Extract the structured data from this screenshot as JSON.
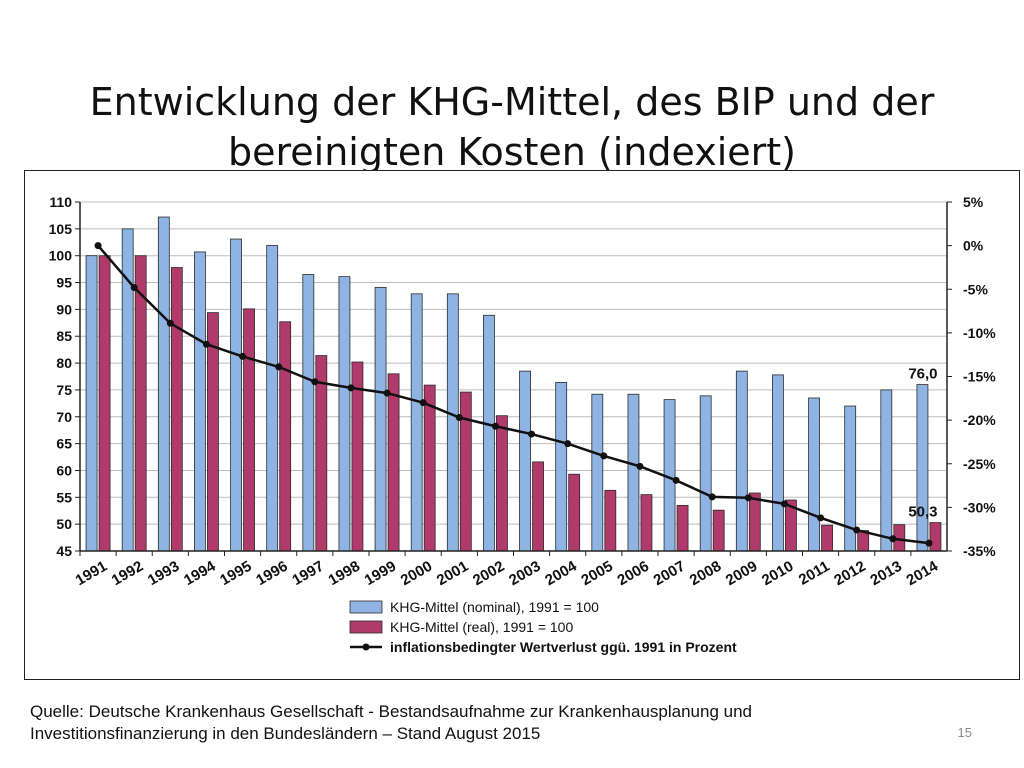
{
  "slide": {
    "title": "Entwicklung der KHG-Mittel, des BIP und der bereinigten Kosten (indexiert)",
    "source": "Quelle: Deutsche Krankenhaus Gesellschaft - Bestandsaufnahme zur  Krankenhausplanung und Investitionsfinanzierung  in den Bundesländern – Stand August 2015",
    "page_number": "15"
  },
  "chart_data": {
    "type": "bar",
    "categories": [
      "1991",
      "1992",
      "1993",
      "1994",
      "1995",
      "1996",
      "1997",
      "1998",
      "1999",
      "2000",
      "2001",
      "2002",
      "2003",
      "2004",
      "2005",
      "2006",
      "2007",
      "2008",
      "2009",
      "2010",
      "2011",
      "2012",
      "2013",
      "2014"
    ],
    "series": [
      {
        "name": "KHG-Mittel (nominal), 1991 = 100",
        "type": "bar",
        "axis": "left",
        "color": "#8fb4e3",
        "values": [
          100,
          105,
          107.2,
          100.7,
          103.1,
          101.9,
          96.5,
          96.1,
          94.1,
          92.9,
          92.9,
          88.9,
          78.5,
          76.4,
          74.2,
          74.2,
          73.2,
          73.9,
          78.5,
          77.8,
          73.5,
          72.0,
          75.0,
          76.0
        ]
      },
      {
        "name": "KHG-Mittel (real), 1991 = 100",
        "type": "bar",
        "axis": "left",
        "color": "#b03a6a",
        "values": [
          100,
          100,
          97.8,
          89.4,
          90.1,
          87.7,
          81.4,
          80.2,
          78.0,
          75.9,
          74.6,
          70.2,
          61.6,
          59.3,
          56.3,
          55.5,
          53.5,
          52.6,
          55.8,
          54.5,
          49.8,
          48.8,
          49.9,
          50.3
        ]
      },
      {
        "name": "inflationsbedingter Wertverlust ggü. 1991 in Prozent",
        "type": "line",
        "axis": "right",
        "color": "#111111",
        "values": [
          0,
          -4.8,
          -8.9,
          -11.3,
          -12.7,
          -13.9,
          -15.6,
          -16.3,
          -16.9,
          -18.0,
          -19.7,
          -20.7,
          -21.6,
          -22.7,
          -24.1,
          -25.3,
          -26.9,
          -28.8,
          -28.9,
          -29.6,
          -31.2,
          -32.6,
          -33.6,
          -34.1
        ]
      }
    ],
    "y_left": {
      "ylim": [
        45,
        110
      ],
      "ticks": [
        110,
        105,
        100,
        95,
        90,
        85,
        80,
        75,
        70,
        65,
        60,
        55,
        50,
        45
      ]
    },
    "y_right": {
      "ylim": [
        -35,
        5
      ],
      "ticks": [
        "5%",
        "0%",
        "-5%",
        "-10%",
        "-15%",
        "-20%",
        "-25%",
        "-30%",
        "-35%"
      ],
      "tick_values": [
        5,
        0,
        -5,
        -10,
        -15,
        -20,
        -25,
        -30,
        -35
      ]
    },
    "annotations": [
      {
        "text": "76,0",
        "category": "2014",
        "series": "KHG-Mittel (nominal), 1991 = 100"
      },
      {
        "text": "50,3",
        "category": "2014",
        "series": "KHG-Mittel (real), 1991 = 100"
      }
    ],
    "legend": "bottom-center",
    "grid": true
  }
}
